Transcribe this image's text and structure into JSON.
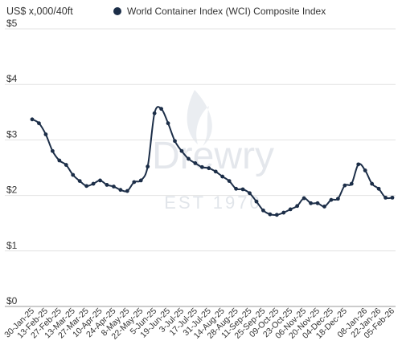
{
  "chart_data": {
    "type": "line",
    "ylabel": "US$ x,000/40ft",
    "ylim": [
      0,
      5
    ],
    "yticks": [
      {
        "value": 0,
        "label": "$0"
      },
      {
        "value": 1,
        "label": "$1"
      },
      {
        "value": 2,
        "label": "$2"
      },
      {
        "value": 3,
        "label": "$3"
      },
      {
        "value": 4,
        "label": "$4"
      },
      {
        "value": 5,
        "label": "$5"
      }
    ],
    "grid": "horizontal",
    "legend_position": "top",
    "x": [
      "30-Jan-25",
      "06-Feb-25",
      "13-Feb-25",
      "20-Feb-25",
      "27-Feb-25",
      "06-Mar-25",
      "13-Mar-25",
      "20-Mar-25",
      "27-Mar-25",
      "03-Apr-25",
      "10-Apr-25",
      "17-Apr-25",
      "24-Apr-25",
      "01-May-25",
      "8-May-25",
      "15-May-25",
      "22-May-25",
      "29-May-25",
      "5-Jun-25",
      "12-Jun-25",
      "19-Jun-25",
      "26-Jun-25",
      "3-Jul-25",
      "10-Jul-25",
      "17-Jul-25",
      "24-Jul-25",
      "31-Jul-25",
      "07-Aug-25",
      "14-Aug-25",
      "21-Aug-25",
      "28-Aug-25",
      "04-Sep-25",
      "11-Sep-25",
      "18-Sep-25",
      "25-Sep-25",
      "02-Oct-25",
      "09-Oct-25",
      "16-Oct-25",
      "23-Oct-25",
      "30-Oct-25",
      "06-Nov-25",
      "13-Nov-25",
      "20-Nov-25",
      "27-Nov-25",
      "04-Dec-25",
      "11-Dec-25",
      "18-Dec-25",
      "25-Dec-25",
      "01-Jan-26",
      "08-Jan-26",
      "15-Jan-26",
      "22-Jan-26",
      "29-Jan-26",
      "05-Feb-26"
    ],
    "xtick_labels": [
      "30-Jan-25",
      "13-Feb-25",
      "27-Feb-25",
      "13-Mar-25",
      "27-Mar-25",
      "10-Apr-25",
      "24-Apr-25",
      "8-May-25",
      "22-May-25",
      "5-Jun-25",
      "19-Jun-25",
      "3-Jul-25",
      "17-Jul-25",
      "31-Jul-25",
      "14-Aug-25",
      "28-Aug-25",
      "11-Sep-25",
      "25-Sep-25",
      "09-Oct-25",
      "23-Oct-25",
      "06-Nov-25",
      "20-Nov-25",
      "04-Dec-25",
      "18-Dec-25",
      "08-Jan-26",
      "22-Jan-26",
      "05-Feb-26"
    ],
    "series": [
      {
        "name": "World Container Index (WCI) Composite Index",
        "color": "#1c2e48",
        "values": [
          3.37,
          3.3,
          3.1,
          2.8,
          2.63,
          2.55,
          2.37,
          2.26,
          2.17,
          2.21,
          2.27,
          2.19,
          2.16,
          2.1,
          2.08,
          2.24,
          2.27,
          2.52,
          3.48,
          3.56,
          3.3,
          2.98,
          2.8,
          2.66,
          2.58,
          2.51,
          2.49,
          2.43,
          2.34,
          2.26,
          2.12,
          2.11,
          2.04,
          1.89,
          1.73,
          1.66,
          1.65,
          1.69,
          1.75,
          1.81,
          1.95,
          1.86,
          1.86,
          1.8,
          1.92,
          1.94,
          2.18,
          2.21,
          2.56,
          2.45,
          2.21,
          2.12,
          1.96,
          1.96
        ]
      }
    ]
  },
  "watermark": {
    "brand": "Drewry",
    "est": "EST 1970"
  }
}
